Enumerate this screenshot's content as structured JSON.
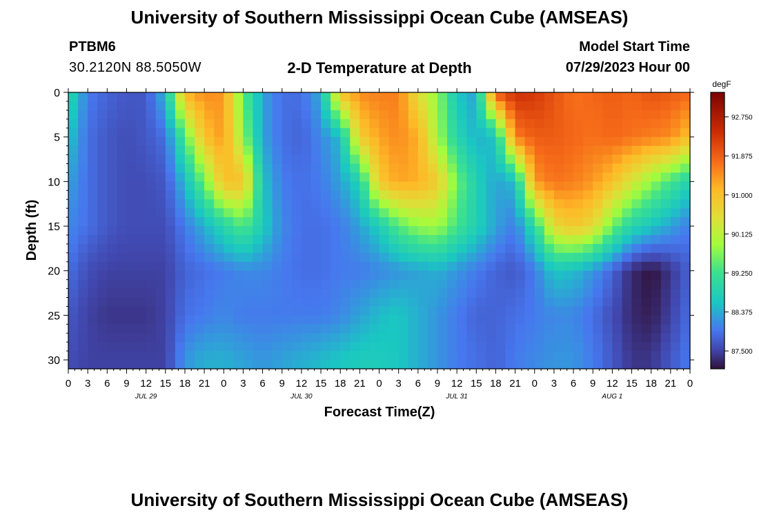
{
  "header": {
    "title": "University of Southern Mississippi Ocean Cube (AMSEAS)",
    "station_id": "PTBM6",
    "station_coords": "30.2120N  88.5050W",
    "plot_title": "2-D Temperature at Depth",
    "model_start_label": "Model Start Time",
    "model_start_value": "07/29/2023 Hour 00"
  },
  "footer": {
    "title_repeat": "University of Southern Mississippi Ocean Cube (AMSEAS)"
  },
  "chart_data": {
    "type": "heatmap",
    "title": "2-D Temperature at Depth",
    "xlabel": "Forecast Time(Z)",
    "ylabel": "Depth (ft)",
    "colorbar_unit": "degF",
    "x_tick_labels": [
      "0",
      "3",
      "6",
      "9",
      "12",
      "15",
      "18",
      "21",
      "0",
      "3",
      "6",
      "9",
      "12",
      "15",
      "18",
      "21",
      "0",
      "3",
      "6",
      "9",
      "12",
      "15",
      "18",
      "21",
      "0",
      "3",
      "6",
      "9",
      "12",
      "15",
      "18",
      "21",
      "0"
    ],
    "x_range_hours": [
      0,
      96
    ],
    "date_labels": [
      {
        "label": "JUL 29",
        "hour": 12
      },
      {
        "label": "JUL 30",
        "hour": 36
      },
      {
        "label": "JUL 31",
        "hour": 60
      },
      {
        "label": "AUG 1",
        "hour": 84
      }
    ],
    "y_ticks": [
      0,
      5,
      10,
      15,
      20,
      25,
      30
    ],
    "ylim": [
      31,
      0
    ],
    "colorbar_ticks": [
      "92.750",
      "91.875",
      "91.000",
      "90.125",
      "89.250",
      "88.375",
      "87.500"
    ],
    "color_range": [
      87.1,
      93.3
    ],
    "depths_ft": [
      0,
      5,
      10,
      15,
      20,
      25,
      30
    ],
    "hours": [
      0,
      3,
      6,
      9,
      12,
      15,
      18,
      21,
      24,
      27,
      30,
      33,
      36,
      39,
      42,
      45,
      48,
      51,
      54,
      57,
      60,
      63,
      66,
      69,
      72,
      75,
      78,
      81,
      84,
      87,
      90,
      93,
      96
    ],
    "temperature_degF": [
      [
        89.0,
        88.0,
        87.8,
        87.7,
        87.7,
        88.5,
        91.2,
        91.5,
        91.4,
        89.5,
        88.3,
        87.9,
        87.9,
        88.4,
        91.0,
        91.5,
        91.6,
        91.6,
        90.5,
        89.8,
        88.6,
        88.3,
        92.0,
        92.4,
        92.3,
        92.0,
        91.7,
        91.8,
        91.9,
        91.8,
        92.0,
        91.9,
        91.8
      ],
      [
        88.6,
        87.9,
        87.7,
        87.6,
        87.7,
        87.9,
        89.4,
        91.0,
        91.4,
        89.8,
        88.3,
        87.9,
        87.8,
        88.1,
        88.5,
        90.8,
        91.3,
        91.5,
        91.2,
        89.9,
        88.9,
        88.4,
        88.6,
        91.6,
        91.9,
        91.9,
        91.8,
        91.7,
        91.8,
        91.7,
        91.6,
        91.5,
        91.0
      ],
      [
        88.3,
        87.9,
        87.7,
        87.6,
        87.6,
        87.7,
        88.5,
        89.6,
        91.0,
        91.0,
        88.6,
        88.0,
        87.9,
        88.0,
        88.3,
        88.8,
        90.9,
        91.3,
        91.2,
        90.8,
        89.6,
        88.8,
        88.3,
        88.5,
        91.4,
        91.7,
        91.6,
        91.4,
        91.0,
        90.4,
        89.8,
        89.3,
        88.8
      ],
      [
        88.1,
        87.9,
        87.7,
        87.6,
        87.6,
        87.6,
        88.0,
        88.4,
        88.9,
        89.4,
        88.7,
        88.1,
        87.9,
        87.9,
        88.0,
        88.3,
        88.7,
        89.4,
        89.8,
        89.9,
        89.3,
        88.8,
        88.3,
        88.0,
        89.0,
        90.6,
        90.9,
        90.6,
        89.6,
        88.9,
        88.6,
        88.3,
        88.0
      ],
      [
        87.9,
        87.6,
        87.5,
        87.5,
        87.5,
        87.5,
        87.8,
        87.9,
        88.0,
        88.1,
        88.1,
        88.0,
        87.9,
        87.9,
        88.0,
        88.0,
        88.1,
        88.2,
        88.3,
        88.4,
        88.2,
        88.0,
        87.8,
        87.7,
        88.0,
        88.6,
        88.5,
        88.2,
        87.8,
        87.3,
        87.1,
        87.4,
        87.8
      ],
      [
        87.7,
        87.5,
        87.4,
        87.4,
        87.4,
        87.5,
        87.9,
        88.0,
        88.1,
        88.0,
        88.0,
        88.0,
        88.0,
        88.0,
        88.1,
        88.3,
        88.5,
        88.6,
        88.4,
        88.2,
        88.0,
        87.8,
        87.8,
        87.9,
        88.0,
        88.1,
        88.1,
        87.9,
        87.6,
        87.3,
        87.2,
        87.5,
        87.9
      ],
      [
        87.6,
        87.5,
        87.5,
        87.5,
        87.5,
        87.5,
        88.2,
        88.4,
        88.4,
        88.3,
        88.2,
        88.3,
        88.4,
        88.5,
        88.6,
        88.7,
        88.7,
        88.6,
        88.4,
        88.2,
        88.0,
        87.9,
        87.8,
        88.0,
        88.1,
        88.2,
        88.2,
        88.0,
        87.7,
        87.4,
        87.4,
        87.7,
        88.0
      ]
    ]
  }
}
